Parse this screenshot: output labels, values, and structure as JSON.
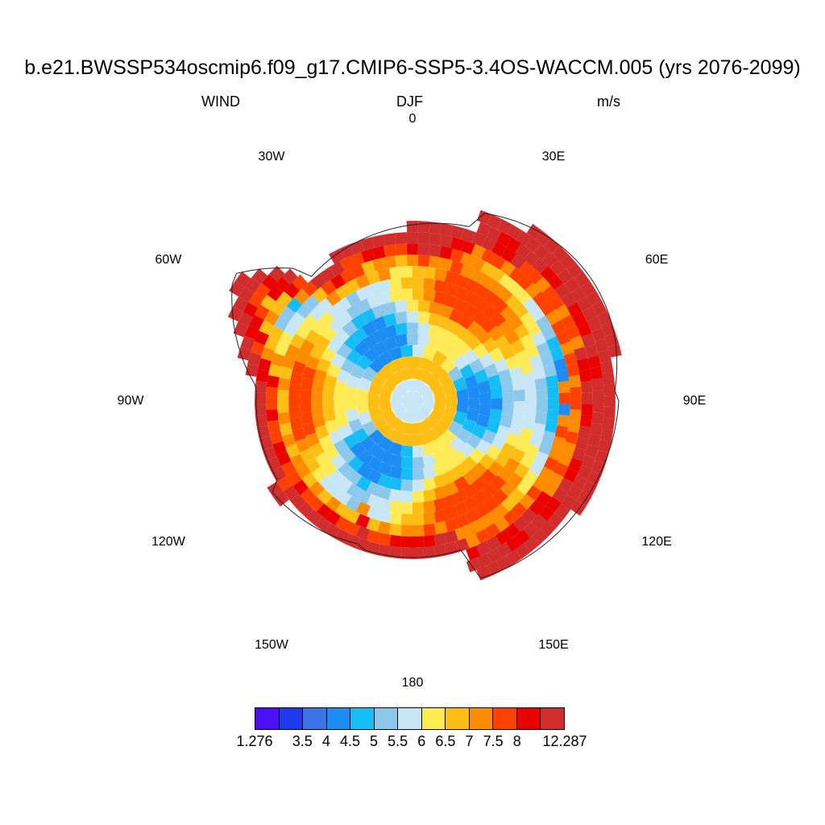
{
  "title": "b.e21.BWSSP534oscmip6.f09_g17.CMIP6-SSP5-3.4OS-WACCM.005 (yrs 2076-2099)",
  "subtitle": {
    "left": "WIND",
    "center": "DJF",
    "right": "m/s"
  },
  "longitude_labels": [
    {
      "text": "0",
      "lon": 0
    },
    {
      "text": "30E",
      "lon": 30
    },
    {
      "text": "60E",
      "lon": 60
    },
    {
      "text": "90E",
      "lon": 90
    },
    {
      "text": "120E",
      "lon": 120
    },
    {
      "text": "150E",
      "lon": 150
    },
    {
      "text": "180",
      "lon": 180
    },
    {
      "text": "150W",
      "lon": -150
    },
    {
      "text": "120W",
      "lon": -120
    },
    {
      "text": "90W",
      "lon": -90
    },
    {
      "text": "60W",
      "lon": -60
    },
    {
      "text": "30W",
      "lon": -30
    }
  ],
  "colorbar": {
    "colors": [
      "#4b0ff5",
      "#1e3ced",
      "#3c73e6",
      "#1e8cf5",
      "#14bef5",
      "#8cc8eb",
      "#c8e6f5",
      "#ffeb55",
      "#ffbe14",
      "#ff8c00",
      "#ff4100",
      "#eb0000",
      "#d22d2d"
    ],
    "labels": [
      "1.276",
      "3.5",
      "4",
      "4.5",
      "5",
      "5.5",
      "6",
      "6.5",
      "7",
      "7.5",
      "8",
      "12.287"
    ],
    "label_boundaries": [
      0,
      2,
      3,
      4,
      5,
      6,
      7,
      8,
      9,
      10,
      11,
      13
    ]
  },
  "map": {
    "projection": "south-polar-stereographic",
    "variable": "WIND",
    "units": "m/s",
    "season": "DJF"
  }
}
